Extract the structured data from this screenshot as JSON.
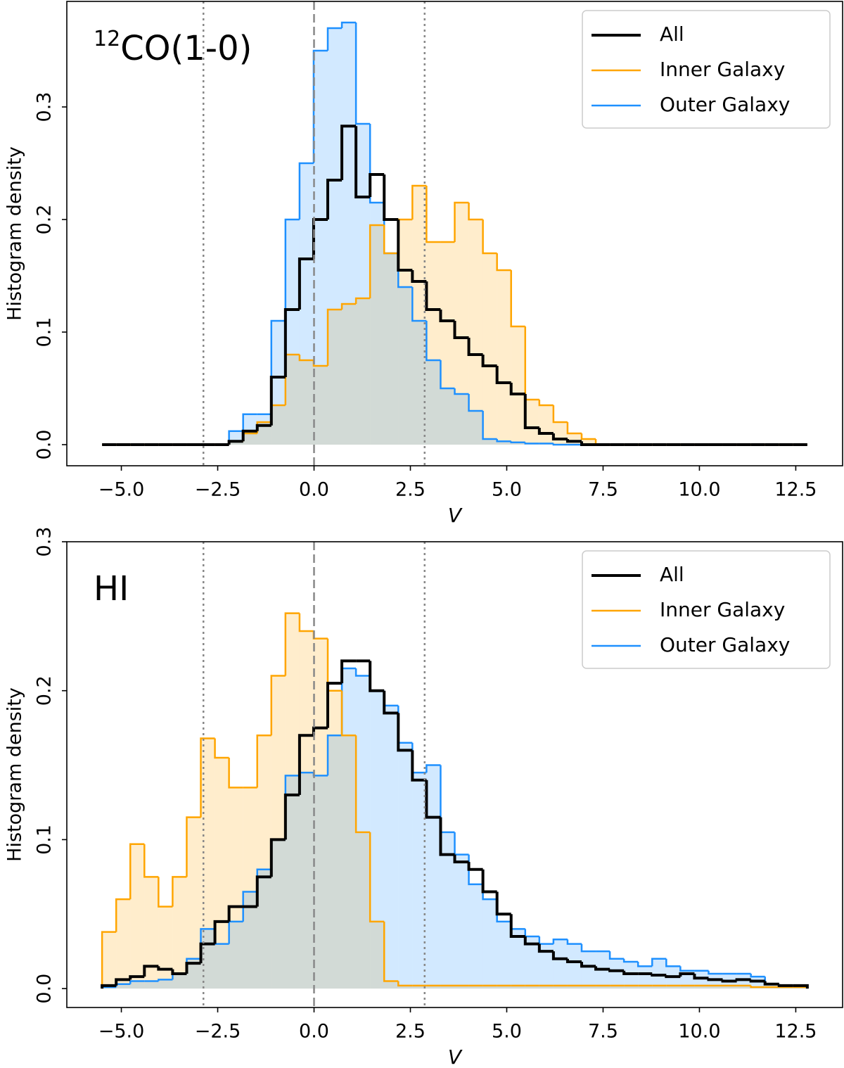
{
  "chart_data": [
    {
      "type": "histogram",
      "annotation": {
        "sup": "12",
        "text": "CO(1-0)"
      },
      "xlabel": "V",
      "ylabel": "Histogram density",
      "bins": [
        -5.5,
        -5.134,
        -4.768,
        -4.402,
        -4.036,
        -3.67,
        -3.304,
        -2.938,
        -2.572,
        -2.206,
        -1.84,
        -1.474,
        -1.108,
        -0.742,
        -0.376,
        -0.01,
        0.356,
        0.722,
        1.088,
        1.454,
        1.82,
        2.186,
        2.552,
        2.918,
        3.284,
        3.65,
        4.016,
        4.382,
        4.748,
        5.114,
        5.48,
        5.846,
        6.212,
        6.578,
        6.944,
        7.31,
        7.676,
        8.042,
        8.408,
        8.774,
        9.14,
        9.506,
        9.872,
        10.238,
        10.604,
        10.97,
        11.336,
        11.702,
        12.068,
        12.434,
        12.8
      ],
      "series": [
        {
          "name": "All",
          "color": "#000000",
          "fill": false,
          "linewidth": 4,
          "values": [
            0,
            0,
            0,
            0,
            0,
            0,
            0,
            0,
            0,
            0.003,
            0.012,
            0.017,
            0.06,
            0.12,
            0.165,
            0.2,
            0.235,
            0.283,
            0.22,
            0.24,
            0.2,
            0.155,
            0.145,
            0.12,
            0.11,
            0.095,
            0.08,
            0.07,
            0.055,
            0.045,
            0.015,
            0.01,
            0.005,
            0.003,
            0,
            0,
            0,
            0,
            0,
            0,
            0,
            0,
            0,
            0,
            0,
            0,
            0,
            0,
            0,
            0
          ]
        },
        {
          "name": "Inner Galaxy",
          "color": "#ffa500",
          "fill": true,
          "linewidth": 2.5,
          "values": [
            0,
            0,
            0,
            0,
            0,
            0,
            0,
            0,
            0,
            0.003,
            0.01,
            0.02,
            0.035,
            0.08,
            0.075,
            0.07,
            0.12,
            0.125,
            0.13,
            0.195,
            0.17,
            0.2,
            0.23,
            0.18,
            0.18,
            0.215,
            0.2,
            0.17,
            0.155,
            0.105,
            0.04,
            0.035,
            0.02,
            0.01,
            0.005,
            0,
            0,
            0,
            0,
            0,
            0,
            0,
            0,
            0,
            0,
            0,
            0,
            0,
            0,
            0
          ]
        },
        {
          "name": "Outer Galaxy",
          "color": "#1e90ff",
          "fill": true,
          "linewidth": 2.5,
          "values": [
            0,
            0,
            0,
            0,
            0,
            0,
            0,
            0,
            0,
            0.012,
            0.027,
            0.027,
            0.11,
            0.2,
            0.25,
            0.35,
            0.37,
            0.375,
            0.285,
            0.215,
            0.17,
            0.14,
            0.11,
            0.075,
            0.05,
            0.045,
            0.03,
            0.005,
            0.003,
            0.002,
            0.001,
            0.001,
            0,
            0,
            0,
            0,
            0,
            0,
            0,
            0,
            0,
            0,
            0,
            0,
            0,
            0,
            0,
            0,
            0,
            0
          ]
        }
      ],
      "fill_alpha": 0.2,
      "vlines": [
        {
          "x": -2.87,
          "style": "dotted"
        },
        {
          "x": 0,
          "style": "dashed"
        },
        {
          "x": 2.87,
          "style": "dotted"
        }
      ],
      "xlim": [
        -6.415,
        13.715
      ],
      "xticks": [
        {
          "value": -5,
          "label": "−5.0"
        },
        {
          "value": -2.5,
          "label": "−2.5"
        },
        {
          "value": 0,
          "label": "0.0"
        },
        2.5,
        {
          "value": 5,
          "label": "5.0"
        },
        7.5,
        {
          "value": 10,
          "label": "10.0"
        },
        12.5
      ],
      "ylim": [
        -0.01875,
        0.39375
      ],
      "yticks": [
        {
          "value": 0,
          "label": "0.0"
        },
        0.1,
        0.2,
        0.3
      ],
      "legend": "upper right"
    },
    {
      "type": "histogram",
      "annotation": {
        "text": "HI"
      },
      "xlabel": "V",
      "ylabel": "Histogram density",
      "bins": [
        -5.5,
        -5.134,
        -4.768,
        -4.402,
        -4.036,
        -3.67,
        -3.304,
        -2.938,
        -2.572,
        -2.206,
        -1.84,
        -1.474,
        -1.108,
        -0.742,
        -0.376,
        -0.01,
        0.356,
        0.722,
        1.088,
        1.454,
        1.82,
        2.186,
        2.552,
        2.918,
        3.284,
        3.65,
        4.016,
        4.382,
        4.748,
        5.114,
        5.48,
        5.846,
        6.212,
        6.578,
        6.944,
        7.31,
        7.676,
        8.042,
        8.408,
        8.774,
        9.14,
        9.506,
        9.872,
        10.238,
        10.604,
        10.97,
        11.336,
        11.702,
        12.068,
        12.434,
        12.8
      ],
      "series": [
        {
          "name": "All",
          "color": "#000000",
          "fill": false,
          "linewidth": 4,
          "values": [
            0.002,
            0.006,
            0.008,
            0.015,
            0.013,
            0.01,
            0.017,
            0.03,
            0.045,
            0.055,
            0.055,
            0.075,
            0.1,
            0.13,
            0.17,
            0.175,
            0.205,
            0.22,
            0.22,
            0.2,
            0.185,
            0.16,
            0.14,
            0.115,
            0.09,
            0.085,
            0.08,
            0.065,
            0.05,
            0.035,
            0.03,
            0.025,
            0.02,
            0.018,
            0.015,
            0.013,
            0.012,
            0.01,
            0.01,
            0.009,
            0.008,
            0.01,
            0.007,
            0.006,
            0.005,
            0.006,
            0.005,
            0.003,
            0.002,
            0.002
          ]
        },
        {
          "name": "Inner Galaxy",
          "color": "#ffa500",
          "fill": true,
          "linewidth": 2.5,
          "values": [
            0.038,
            0.06,
            0.097,
            0.075,
            0.055,
            0.075,
            0.115,
            0.168,
            0.155,
            0.135,
            0.135,
            0.17,
            0.21,
            0.252,
            0.24,
            0.235,
            0.2,
            0.17,
            0.105,
            0.045,
            0.005,
            0.002,
            0.002,
            0.002,
            0.002,
            0.002,
            0.002,
            0.002,
            0.002,
            0.002,
            0.002,
            0.002,
            0.002,
            0.002,
            0.002,
            0.002,
            0.002,
            0.002,
            0.002,
            0.002,
            0.002,
            0.002,
            0.002,
            0.002,
            0.002,
            0.002,
            0.001,
            0.001,
            0.001,
            0.001
          ]
        },
        {
          "name": "Outer Galaxy",
          "color": "#1e90ff",
          "fill": true,
          "linewidth": 2.5,
          "values": [
            0.001,
            0.003,
            0.005,
            0.005,
            0.006,
            0.01,
            0.02,
            0.04,
            0.03,
            0.045,
            0.065,
            0.08,
            0.1,
            0.143,
            0.145,
            0.143,
            0.17,
            0.215,
            0.21,
            0.2,
            0.19,
            0.165,
            0.145,
            0.15,
            0.105,
            0.09,
            0.07,
            0.06,
            0.045,
            0.04,
            0.035,
            0.03,
            0.033,
            0.03,
            0.025,
            0.025,
            0.02,
            0.018,
            0.015,
            0.02,
            0.015,
            0.012,
            0.012,
            0.01,
            0.01,
            0.01,
            0.008,
            0.003,
            0.002,
            0.002
          ]
        }
      ],
      "fill_alpha": 0.2,
      "vlines": [
        {
          "x": -2.87,
          "style": "dotted"
        },
        {
          "x": 0,
          "style": "dashed"
        },
        {
          "x": 2.87,
          "style": "dotted"
        }
      ],
      "xlim": [
        -6.415,
        13.715
      ],
      "xticks": [
        {
          "value": -5,
          "label": "−5.0"
        },
        {
          "value": -2.5,
          "label": "−2.5"
        },
        {
          "value": 0,
          "label": "0.0"
        },
        2.5,
        {
          "value": 5,
          "label": "5.0"
        },
        7.5,
        {
          "value": 10,
          "label": "10.0"
        },
        12.5
      ],
      "ylim": [
        -0.0127,
        0.3
      ],
      "yticks": [
        {
          "value": 0,
          "label": "0.0"
        },
        0.1,
        0.2,
        0.3
      ],
      "legend": "upper right"
    }
  ]
}
